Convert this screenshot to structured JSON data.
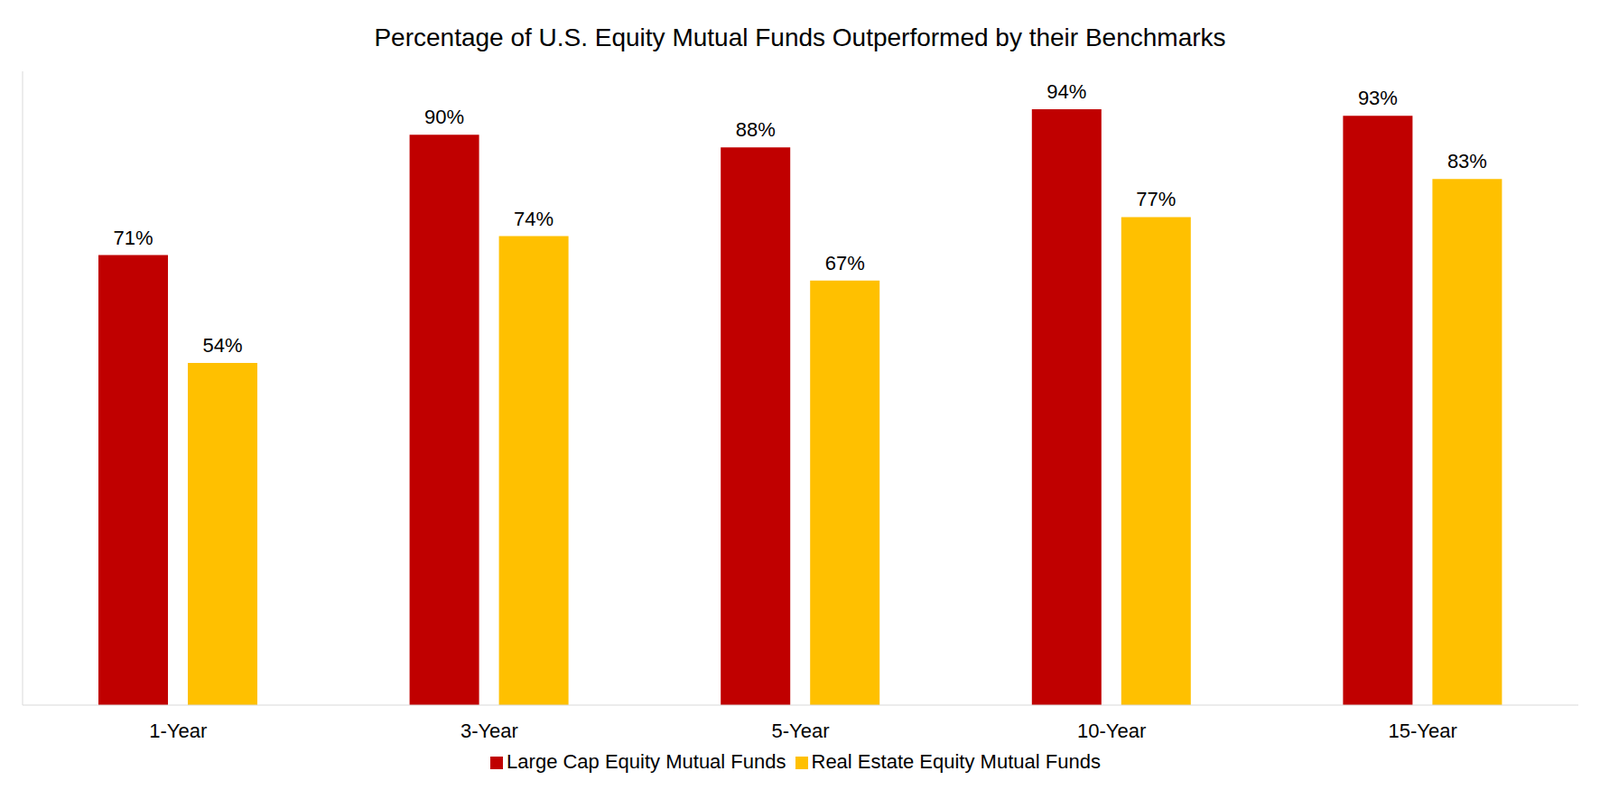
{
  "chart_data": {
    "type": "bar",
    "title": "Percentage of U.S. Equity Mutual Funds Outperformed by their Benchmarks",
    "categories": [
      "1-Year",
      "3-Year",
      "5-Year",
      "10-Year",
      "15-Year"
    ],
    "series": [
      {
        "name": "Large Cap Equity Mutual Funds",
        "color": "#C00000",
        "values": [
          71,
          90,
          88,
          94,
          93
        ],
        "value_labels": [
          "71%",
          "90%",
          "88%",
          "94%",
          "93%"
        ]
      },
      {
        "name": "Real Estate Equity Mutual Funds",
        "color": "#FFC000",
        "values": [
          54,
          74,
          67,
          77,
          83
        ],
        "value_labels": [
          "54%",
          "74%",
          "67%",
          "77%",
          "83%"
        ]
      }
    ],
    "ylim": [
      0,
      100
    ],
    "grid": false,
    "legend": "bottom",
    "data_labels": true,
    "tick_labels": "x"
  }
}
